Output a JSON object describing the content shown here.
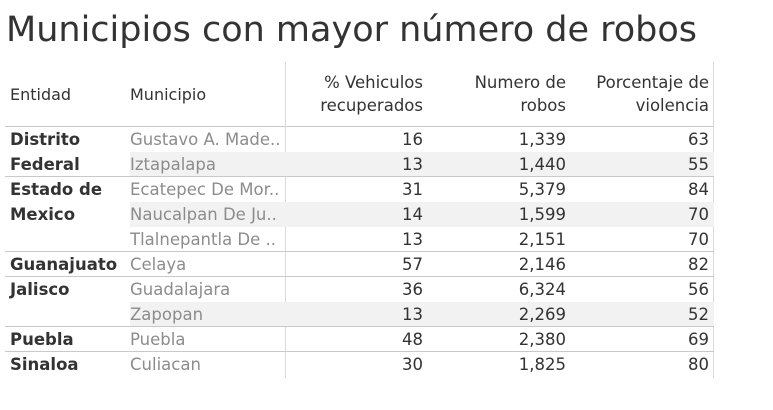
{
  "title": "Municipios con mayor número de robos",
  "chart_data": {
    "type": "table",
    "columns": [
      "Entidad",
      "Municipio",
      "% Vehiculos recuperados",
      "Numero de robos",
      "Porcentaje de violencia"
    ],
    "header_lines": {
      "entidad": "Entidad",
      "municipio": "Municipio",
      "recuperados_1": "% Vehiculos",
      "recuperados_2": "recuperados",
      "robos_1": "Numero de",
      "robos_2": "robos",
      "violencia_1": "Porcentaje de",
      "violencia_2": "violencia"
    },
    "groups": [
      {
        "entidad_lines": [
          "Distrito",
          "Federal"
        ],
        "rows": [
          {
            "municipio": "Gustavo A. Made..",
            "recuperados": "16",
            "robos": "1,339",
            "violencia": "63"
          },
          {
            "municipio": "Iztapalapa",
            "recuperados": "13",
            "robos": "1,440",
            "violencia": "55"
          }
        ]
      },
      {
        "entidad_lines": [
          "Estado de",
          "Mexico"
        ],
        "rows": [
          {
            "municipio": "Ecatepec De Mor..",
            "recuperados": "31",
            "robos": "5,379",
            "violencia": "84"
          },
          {
            "municipio": "Naucalpan De Ju..",
            "recuperados": "14",
            "robos": "1,599",
            "violencia": "70"
          },
          {
            "municipio": "Tlalnepantla De ..",
            "recuperados": "13",
            "robos": "2,151",
            "violencia": "70"
          }
        ]
      },
      {
        "entidad_lines": [
          "Guanajuato"
        ],
        "rows": [
          {
            "municipio": "Celaya",
            "recuperados": "57",
            "robos": "2,146",
            "violencia": "82"
          }
        ]
      },
      {
        "entidad_lines": [
          "Jalisco"
        ],
        "rows": [
          {
            "municipio": "Guadalajara",
            "recuperados": "36",
            "robos": "6,324",
            "violencia": "56"
          },
          {
            "municipio": "Zapopan",
            "recuperados": "13",
            "robos": "2,269",
            "violencia": "52"
          }
        ]
      },
      {
        "entidad_lines": [
          "Puebla"
        ],
        "rows": [
          {
            "municipio": "Puebla",
            "recuperados": "48",
            "robos": "2,380",
            "violencia": "69"
          }
        ]
      },
      {
        "entidad_lines": [
          "Sinaloa"
        ],
        "rows": [
          {
            "municipio": "Culiacan",
            "recuperados": "30",
            "robos": "1,825",
            "violencia": "80"
          }
        ]
      }
    ]
  }
}
